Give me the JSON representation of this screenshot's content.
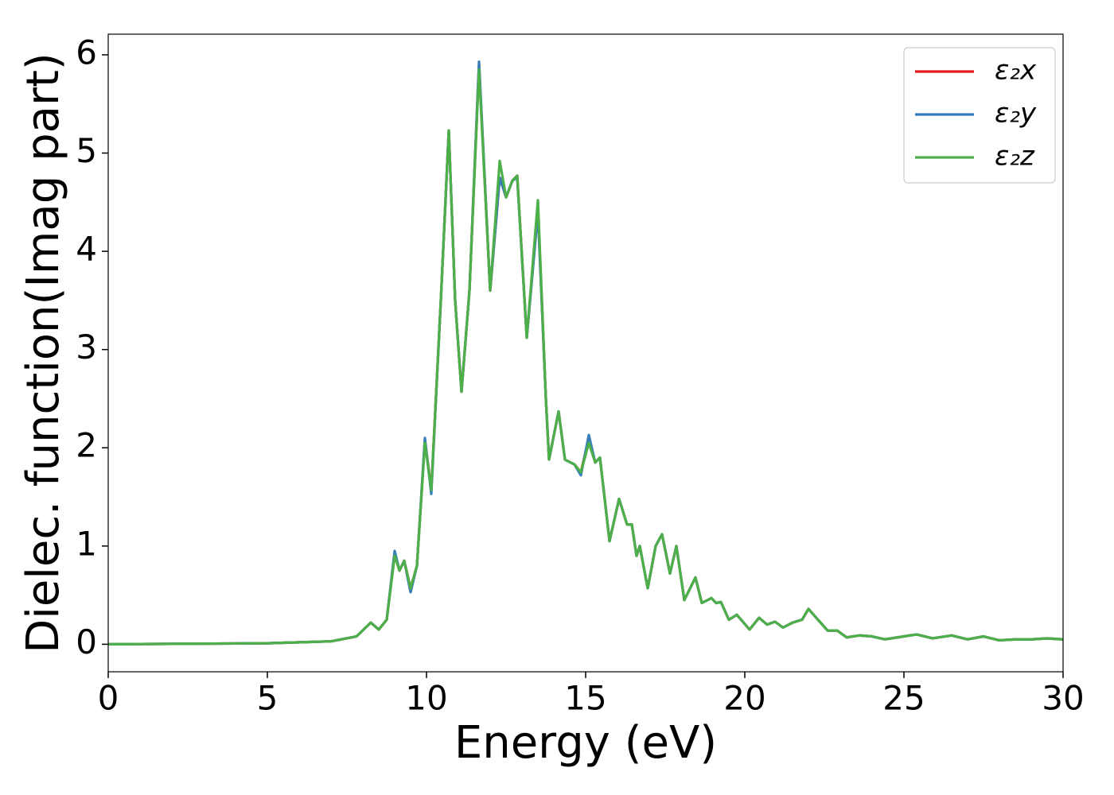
{
  "chart_data": {
    "type": "line",
    "xlabel": "Energy (eV)",
    "ylabel": "Dielec. function(Imag part)",
    "x": [
      0,
      5,
      7,
      7.8,
      8.25,
      8.5,
      8.75,
      9.0,
      9.15,
      9.3,
      9.5,
      9.7,
      9.95,
      10.15,
      10.45,
      10.7,
      10.9,
      11.1,
      11.35,
      11.65,
      12.0,
      12.3,
      12.5,
      12.7,
      12.85,
      13.15,
      13.5,
      13.75,
      13.85,
      14.15,
      14.35,
      14.65,
      14.85,
      15.1,
      15.3,
      15.45,
      15.75,
      16.05,
      16.3,
      16.45,
      16.6,
      16.7,
      16.95,
      17.2,
      17.4,
      17.65,
      17.85,
      18.1,
      18.45,
      18.65,
      18.95,
      19.1,
      19.25,
      19.5,
      19.75,
      20.15,
      20.45,
      20.7,
      20.95,
      21.2,
      21.5,
      21.8,
      22.0,
      22.3,
      22.6,
      22.9,
      23.2,
      23.6,
      24.0,
      24.4,
      24.8,
      25.4,
      25.9,
      26.5,
      27.0,
      27.5,
      28.0,
      28.5,
      29.0,
      29.5,
      30
    ],
    "series": [
      {
        "name": "ε₂x",
        "color": "#e41a1c",
        "values": [
          0,
          0.01,
          0.03,
          0.08,
          0.22,
          0.15,
          0.25,
          0.93,
          0.75,
          0.85,
          0.57,
          0.8,
          2.08,
          1.57,
          3.5,
          5.23,
          3.5,
          2.57,
          3.6,
          5.9,
          3.6,
          4.75,
          4.55,
          4.72,
          4.77,
          3.12,
          4.43,
          2.5,
          1.88,
          2.37,
          1.88,
          1.83,
          1.75,
          2.1,
          1.85,
          1.9,
          1.05,
          1.48,
          1.22,
          1.22,
          0.9,
          1.0,
          0.57,
          1.0,
          1.12,
          0.72,
          1.0,
          0.45,
          0.68,
          0.42,
          0.47,
          0.42,
          0.43,
          0.25,
          0.3,
          0.15,
          0.27,
          0.2,
          0.23,
          0.17,
          0.22,
          0.25,
          0.36,
          0.25,
          0.14,
          0.14,
          0.07,
          0.09,
          0.08,
          0.05,
          0.07,
          0.1,
          0.06,
          0.09,
          0.05,
          0.08,
          0.04,
          0.05,
          0.05,
          0.06,
          0.05
        ]
      },
      {
        "name": "ε₂y",
        "color": "#377eb8",
        "values": [
          0,
          0.01,
          0.03,
          0.08,
          0.22,
          0.15,
          0.25,
          0.95,
          0.75,
          0.85,
          0.53,
          0.8,
          2.1,
          1.53,
          3.5,
          5.23,
          3.5,
          2.57,
          3.6,
          5.93,
          3.6,
          4.75,
          4.55,
          4.72,
          4.75,
          3.12,
          4.4,
          2.5,
          1.88,
          2.37,
          1.88,
          1.83,
          1.72,
          2.13,
          1.85,
          1.9,
          1.05,
          1.48,
          1.22,
          1.22,
          0.9,
          1.0,
          0.57,
          1.0,
          1.12,
          0.72,
          1.0,
          0.45,
          0.68,
          0.42,
          0.47,
          0.42,
          0.43,
          0.25,
          0.3,
          0.15,
          0.27,
          0.2,
          0.23,
          0.17,
          0.22,
          0.25,
          0.36,
          0.25,
          0.14,
          0.14,
          0.07,
          0.09,
          0.08,
          0.05,
          0.07,
          0.1,
          0.06,
          0.09,
          0.05,
          0.08,
          0.04,
          0.05,
          0.05,
          0.06,
          0.05
        ]
      },
      {
        "name": "ε₂z",
        "color": "#4daf4a",
        "values": [
          0,
          0.01,
          0.03,
          0.08,
          0.22,
          0.15,
          0.25,
          0.9,
          0.75,
          0.85,
          0.57,
          0.8,
          2.05,
          1.57,
          3.5,
          5.23,
          3.5,
          2.57,
          3.6,
          5.85,
          3.6,
          4.92,
          4.55,
          4.72,
          4.77,
          3.12,
          4.52,
          2.5,
          1.88,
          2.37,
          1.88,
          1.83,
          1.75,
          2.05,
          1.85,
          1.9,
          1.05,
          1.48,
          1.22,
          1.22,
          0.9,
          1.0,
          0.57,
          1.0,
          1.12,
          0.72,
          1.0,
          0.45,
          0.68,
          0.42,
          0.47,
          0.42,
          0.43,
          0.25,
          0.3,
          0.15,
          0.27,
          0.2,
          0.23,
          0.17,
          0.22,
          0.25,
          0.36,
          0.25,
          0.14,
          0.14,
          0.07,
          0.09,
          0.08,
          0.05,
          0.07,
          0.1,
          0.06,
          0.09,
          0.05,
          0.08,
          0.04,
          0.05,
          0.05,
          0.06,
          0.05
        ]
      }
    ],
    "xlim": [
      0,
      30
    ],
    "xticks": [
      0,
      5,
      10,
      15,
      20,
      25,
      30
    ],
    "ylim": [
      -0.28,
      6.21
    ],
    "yticks": [
      0,
      1,
      2,
      3,
      4,
      5,
      6
    ],
    "grid": false,
    "legend": "upper right"
  }
}
